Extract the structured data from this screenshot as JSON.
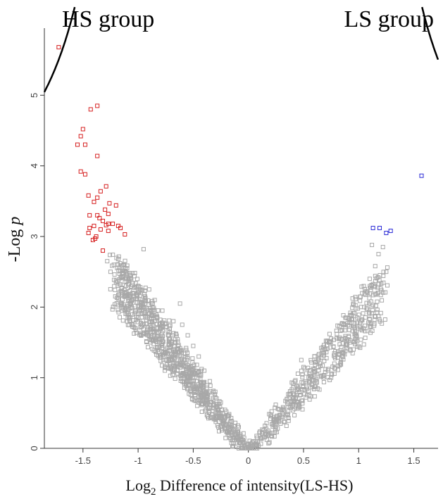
{
  "chart_data": {
    "type": "scatter",
    "title": "",
    "xlabel_main": "Log",
    "xlabel_sub": "2",
    "xlabel_rest": " Difference of intensity(LS-HS)",
    "ylabel_main": "-Log ",
    "ylabel_var": "p",
    "group_labels": {
      "left": "HS group",
      "right": "LS group"
    },
    "xlim": [
      -1.85,
      1.72
    ],
    "ylim": [
      0,
      5.95
    ],
    "x_ticks": [
      -1.5,
      -1,
      -0.5,
      0,
      0.5,
      1,
      1.5
    ],
    "x_tick_labels": [
      "-1.5",
      "-1",
      "-0.5",
      "0",
      "0.5",
      "1",
      "1.5"
    ],
    "y_ticks": [
      0,
      1,
      2,
      3,
      4,
      5
    ],
    "y_tick_labels": [
      "0",
      "1",
      "2",
      "3",
      "4",
      "5"
    ],
    "grid": false,
    "colors": {
      "hs_significant": "#d62020",
      "ls_significant": "#2a2ad6",
      "not_significant": "#a8a8a8",
      "threshold_curve": "#000000"
    },
    "threshold": {
      "s0": 0.97,
      "c": 2.4
    },
    "series": [
      {
        "label": "HS group significant",
        "points": [
          [
            -1.72,
            5.68
          ],
          [
            -1.43,
            4.8
          ],
          [
            -1.37,
            4.85
          ],
          [
            -1.5,
            4.52
          ],
          [
            -1.52,
            4.42
          ],
          [
            -1.55,
            4.3
          ],
          [
            -1.48,
            4.3
          ],
          [
            -1.37,
            4.14
          ],
          [
            -1.52,
            3.92
          ],
          [
            -1.48,
            3.88
          ],
          [
            -1.29,
            3.71
          ],
          [
            -1.34,
            3.64
          ],
          [
            -1.45,
            3.58
          ],
          [
            -1.37,
            3.55
          ],
          [
            -1.4,
            3.49
          ],
          [
            -1.26,
            3.47
          ],
          [
            -1.2,
            3.44
          ],
          [
            -1.3,
            3.38
          ],
          [
            -1.44,
            3.3
          ],
          [
            -1.37,
            3.3
          ],
          [
            -1.27,
            3.32
          ],
          [
            -1.35,
            3.26
          ],
          [
            -1.32,
            3.22
          ],
          [
            -1.27,
            3.18
          ],
          [
            -1.23,
            3.18
          ],
          [
            -1.18,
            3.15
          ],
          [
            -1.4,
            3.15
          ],
          [
            -1.29,
            3.16
          ],
          [
            -1.16,
            3.12
          ],
          [
            -1.44,
            3.12
          ],
          [
            -1.34,
            3.1
          ],
          [
            -1.27,
            3.08
          ],
          [
            -1.45,
            3.05
          ],
          [
            -1.12,
            3.03
          ],
          [
            -1.38,
            3.0
          ],
          [
            -1.39,
            2.97
          ],
          [
            -1.41,
            2.95
          ],
          [
            -1.32,
            2.8
          ]
        ]
      },
      {
        "label": "LS group significant",
        "points": [
          [
            1.57,
            3.86
          ],
          [
            1.13,
            3.12
          ],
          [
            1.19,
            3.12
          ],
          [
            1.29,
            3.08
          ],
          [
            1.25,
            3.05
          ]
        ]
      },
      {
        "label": "not significant",
        "points": [
          [
            -0.95,
            2.82
          ],
          [
            -1.28,
            2.65
          ],
          [
            -1.22,
            2.6
          ],
          [
            -1.18,
            2.68
          ],
          [
            -1.1,
            2.55
          ],
          [
            -1.05,
            2.48
          ],
          [
            -1.25,
            2.5
          ],
          [
            -1.15,
            2.42
          ],
          [
            -1.0,
            2.3
          ],
          [
            -0.9,
            2.25
          ],
          [
            -0.85,
            2.1
          ],
          [
            -0.78,
            1.95
          ],
          [
            -0.62,
            2.05
          ],
          [
            -0.6,
            1.75
          ],
          [
            -0.55,
            1.6
          ],
          [
            -0.5,
            1.45
          ],
          [
            -0.45,
            1.3
          ],
          [
            -0.4,
            1.1
          ],
          [
            -0.35,
            0.95
          ],
          [
            -0.3,
            0.8
          ],
          [
            -0.25,
            0.65
          ],
          [
            -0.2,
            0.52
          ],
          [
            -0.15,
            0.38
          ],
          [
            -0.1,
            0.25
          ],
          [
            -0.05,
            0.12
          ],
          [
            0.0,
            0.02
          ],
          [
            -0.7,
            1.5
          ],
          [
            -0.8,
            1.7
          ],
          [
            -0.95,
            2.0
          ],
          [
            -1.05,
            2.2
          ],
          [
            -1.2,
            2.35
          ],
          [
            -0.65,
            1.2
          ],
          [
            -0.55,
            1.0
          ],
          [
            -0.48,
            0.85
          ],
          [
            -0.38,
            0.7
          ],
          [
            -0.28,
            0.5
          ],
          [
            -0.18,
            0.3
          ],
          [
            -0.75,
            1.35
          ],
          [
            -0.88,
            1.85
          ],
          [
            -0.68,
            1.8
          ],
          [
            0.05,
            0.1
          ],
          [
            0.1,
            0.22
          ],
          [
            0.15,
            0.32
          ],
          [
            0.2,
            0.42
          ],
          [
            0.28,
            0.55
          ],
          [
            0.35,
            0.7
          ],
          [
            0.45,
            0.85
          ],
          [
            0.55,
            0.95
          ],
          [
            0.62,
            1.05
          ],
          [
            0.7,
            1.12
          ],
          [
            0.78,
            1.2
          ],
          [
            0.85,
            1.35
          ],
          [
            0.92,
            1.5
          ],
          [
            0.98,
            1.65
          ],
          [
            1.02,
            1.8
          ],
          [
            1.05,
            2.0
          ],
          [
            1.08,
            2.2
          ],
          [
            1.1,
            2.4
          ],
          [
            1.15,
            2.58
          ],
          [
            1.18,
            2.75
          ],
          [
            1.22,
            2.85
          ],
          [
            1.12,
            2.88
          ],
          [
            1.25,
            2.5
          ],
          [
            0.48,
            1.25
          ],
          [
            0.5,
            1.15
          ],
          [
            0.6,
            1.3
          ],
          [
            0.88,
            1.85
          ],
          [
            0.75,
            1.0
          ],
          [
            0.4,
            0.6
          ],
          [
            0.3,
            0.45
          ],
          [
            0.25,
            0.35
          ],
          [
            0.18,
            0.25
          ],
          [
            0.08,
            0.15
          ],
          [
            0.95,
            2.05
          ],
          [
            0.82,
            1.55
          ],
          [
            0.68,
            1.35
          ]
        ]
      }
    ]
  }
}
